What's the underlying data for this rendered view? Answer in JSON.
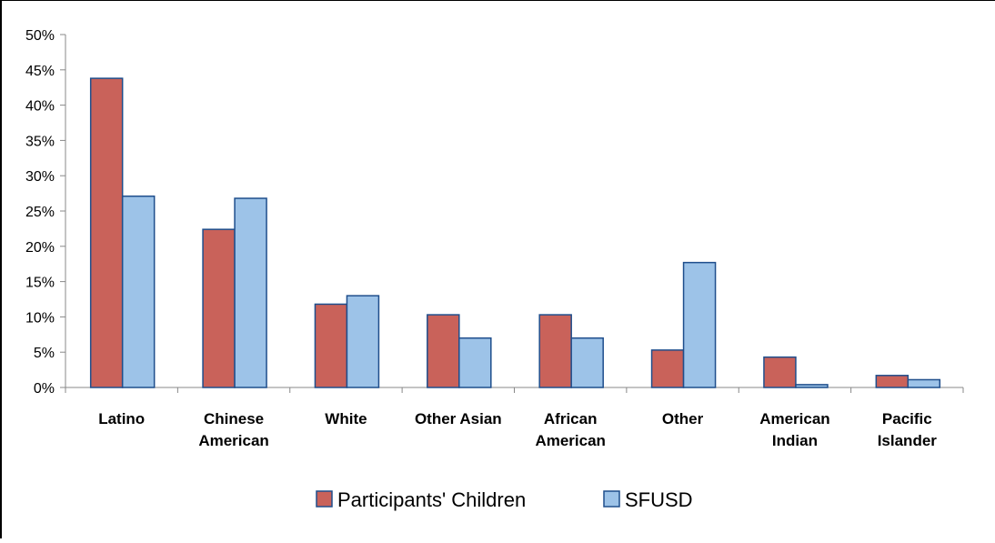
{
  "chart_data": {
    "type": "bar",
    "title": "",
    "xlabel": "",
    "ylabel": "",
    "ylim": [
      0,
      50
    ],
    "y_ticks": [
      "0%",
      "5%",
      "10%",
      "15%",
      "20%",
      "25%",
      "30%",
      "35%",
      "40%",
      "45%",
      "50%"
    ],
    "categories": [
      [
        "Latino"
      ],
      [
        "Chinese",
        "American"
      ],
      [
        "White"
      ],
      [
        "Other Asian"
      ],
      [
        "African",
        "American"
      ],
      [
        "Other"
      ],
      [
        "American",
        "Indian"
      ],
      [
        "Pacific",
        "Islander"
      ]
    ],
    "series": [
      {
        "name": "Participants' Children",
        "color": "#C9625A",
        "values": [
          43.8,
          22.4,
          11.8,
          10.3,
          10.3,
          5.3,
          4.3,
          1.7
        ]
      },
      {
        "name": "SFUSD",
        "color": "#9DC3E8",
        "values": [
          27.1,
          26.8,
          13.0,
          7.0,
          7.0,
          17.7,
          0.4,
          1.1
        ]
      }
    ],
    "bar_stroke": "#1F4E8C",
    "grid": false,
    "legend_position": "bottom"
  }
}
